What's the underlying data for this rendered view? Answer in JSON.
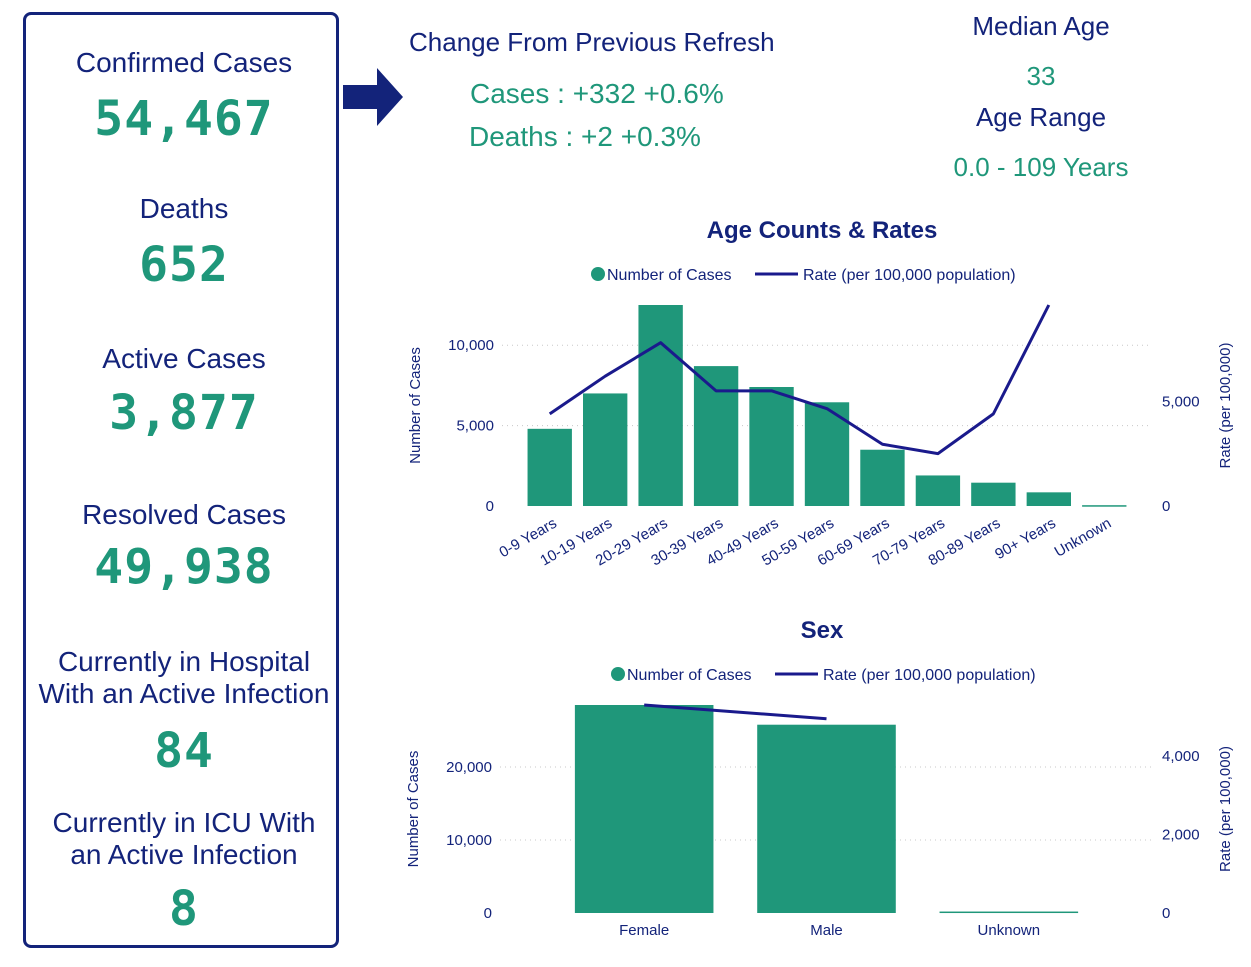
{
  "kpis": {
    "confirmed_label": "Confirmed Cases",
    "confirmed_value": "54,467",
    "deaths_label": "Deaths",
    "deaths_value": "652",
    "active_label": "Active Cases",
    "active_value": "3,877",
    "resolved_label": "Resolved Cases",
    "resolved_value": "49,938",
    "hospital_label_line1": "Currently in Hospital",
    "hospital_label_line2": "With an Active Infection",
    "hospital_value": "84",
    "icu_label_line1": "Currently in ICU With",
    "icu_label_line2": "an Active Infection",
    "icu_value": "8"
  },
  "change": {
    "title": "Change From Previous Refresh",
    "cases": "Cases : +332 +0.6%",
    "deaths": "Deaths : +2 +0.3%"
  },
  "age_summary": {
    "median_label": "Median Age",
    "median_value": "33",
    "range_label": "Age Range",
    "range_value": "0.0 - 109 Years"
  },
  "colors": {
    "navy": "#13237a",
    "green": "#1f977a",
    "bar": "#1f977a",
    "line": "#1a1a8c"
  },
  "chart_data": [
    {
      "type": "bar",
      "title": "Age Counts & Rates",
      "legend": [
        "Number of Cases",
        "Rate (per 100,000 population)"
      ],
      "legend_position": "top",
      "categories": [
        "0-9 Years",
        "10-19 Years",
        "20-29 Years",
        "30-39 Years",
        "40-49 Years",
        "50-59 Years",
        "60-69 Years",
        "70-79 Years",
        "80-89 Years",
        "90+ Years",
        "Unknown"
      ],
      "series": [
        {
          "name": "Number of Cases",
          "values": [
            4800,
            7000,
            12500,
            8700,
            7400,
            6450,
            3500,
            1900,
            1450,
            850,
            50
          ]
        },
        {
          "name": "Rate (per 100,000 population)",
          "values": [
            4400,
            6200,
            7800,
            5500,
            5500,
            4650,
            2950,
            2500,
            4400,
            9600,
            null
          ]
        }
      ],
      "ylabel": "Number of Cases",
      "y2label": "Rate (per 100,000)",
      "ylim": [
        0,
        12500
      ],
      "y2lim": [
        0,
        9600
      ],
      "yticks": [
        0,
        5000,
        10000
      ],
      "yticklabels": [
        "0",
        "5,000",
        "10,000"
      ],
      "y2ticks": [
        0,
        5000
      ],
      "y2ticklabels": [
        "0",
        "5,000"
      ],
      "grid": true
    },
    {
      "type": "bar",
      "title": "Sex",
      "legend": [
        "Number of Cases",
        "Rate (per 100,000 population)"
      ],
      "legend_position": "top",
      "categories": [
        "Female",
        "Male",
        "Unknown"
      ],
      "series": [
        {
          "name": "Number of Cases",
          "values": [
            28500,
            25800,
            200
          ]
        },
        {
          "name": "Rate (per 100,000 population)",
          "values": [
            5300,
            4950,
            null
          ]
        }
      ],
      "ylabel": "Number of Cases",
      "y2label": "Rate (per 100,000)",
      "ylim": [
        0,
        28500
      ],
      "y2lim": [
        0,
        5300
      ],
      "yticks": [
        0,
        10000,
        20000
      ],
      "yticklabels": [
        "0",
        "10,000",
        "20,000"
      ],
      "y2ticks": [
        0,
        2000,
        4000
      ],
      "y2ticklabels": [
        "0",
        "2,000",
        "4,000"
      ],
      "grid": true
    }
  ]
}
